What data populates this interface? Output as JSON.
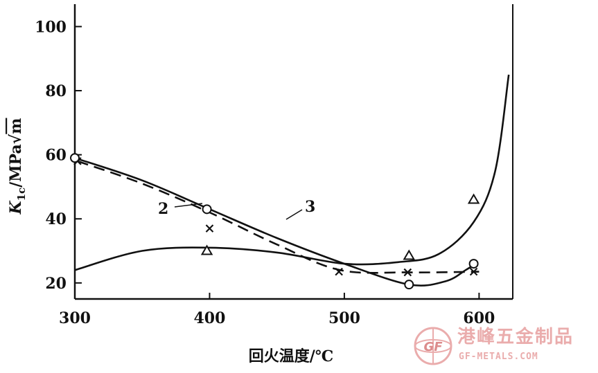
{
  "chart_data": {
    "type": "line",
    "xlabel": "回火温度/℃",
    "ylabel": "K1c/MPa√m",
    "ylabel_parts": {
      "symbol": "K",
      "subscript": "1c",
      "unit": "/MPa",
      "radical": "m"
    },
    "xlim": [
      300,
      625
    ],
    "ylim": [
      15,
      107
    ],
    "x_ticks": [
      300,
      400,
      500,
      600
    ],
    "y_ticks": [
      20,
      40,
      60,
      80,
      100
    ],
    "x_tick_labels": [
      "300",
      "400",
      "500",
      "600"
    ],
    "y_tick_labels": [
      "20",
      "40",
      "60",
      "80",
      "100"
    ],
    "grid": false,
    "series": [
      {
        "name": "2",
        "style": "dashed",
        "marker": "x",
        "points": [
          [
            302,
            58
          ],
          [
            400,
            37
          ],
          [
            496,
            23.5
          ],
          [
            547,
            23.3
          ],
          [
            596,
            23.5
          ]
        ],
        "curve": [
          [
            302,
            58
          ],
          [
            350,
            51
          ],
          [
            400,
            42
          ],
          [
            450,
            32
          ],
          [
            497,
            24
          ],
          [
            548,
            23.3
          ],
          [
            600,
            23.5
          ]
        ]
      },
      {
        "name": "3",
        "style": "solid",
        "marker": "circle",
        "points": [
          [
            300,
            59
          ],
          [
            398,
            43
          ],
          [
            548,
            19.5
          ],
          [
            596,
            26
          ]
        ],
        "curve": [
          [
            300,
            59
          ],
          [
            350,
            52
          ],
          [
            400,
            43
          ],
          [
            450,
            34
          ],
          [
            500,
            26
          ],
          [
            548,
            19.5
          ],
          [
            575,
            20.5
          ],
          [
            590,
            24
          ],
          [
            597,
            26
          ]
        ]
      },
      {
        "name": "",
        "style": "solid",
        "marker": "triangle",
        "points": [
          [
            398,
            30
          ],
          [
            548,
            28.5
          ],
          [
            596,
            46
          ]
        ],
        "curve": [
          [
            300,
            24
          ],
          [
            350,
            30
          ],
          [
            400,
            31
          ],
          [
            450,
            29.5
          ],
          [
            500,
            26
          ],
          [
            540,
            26.5
          ],
          [
            570,
            29
          ],
          [
            596,
            39
          ],
          [
            612,
            55
          ],
          [
            622,
            85
          ]
        ]
      }
    ],
    "annotations": [
      {
        "text": "2",
        "series": "2"
      },
      {
        "text": "3",
        "series": "3"
      }
    ]
  },
  "watermark": {
    "brand_cn": "港峰五金制品",
    "brand_en": "GF-METALS.COM",
    "logo_letters": "GF",
    "color": "#e8a4a4"
  }
}
